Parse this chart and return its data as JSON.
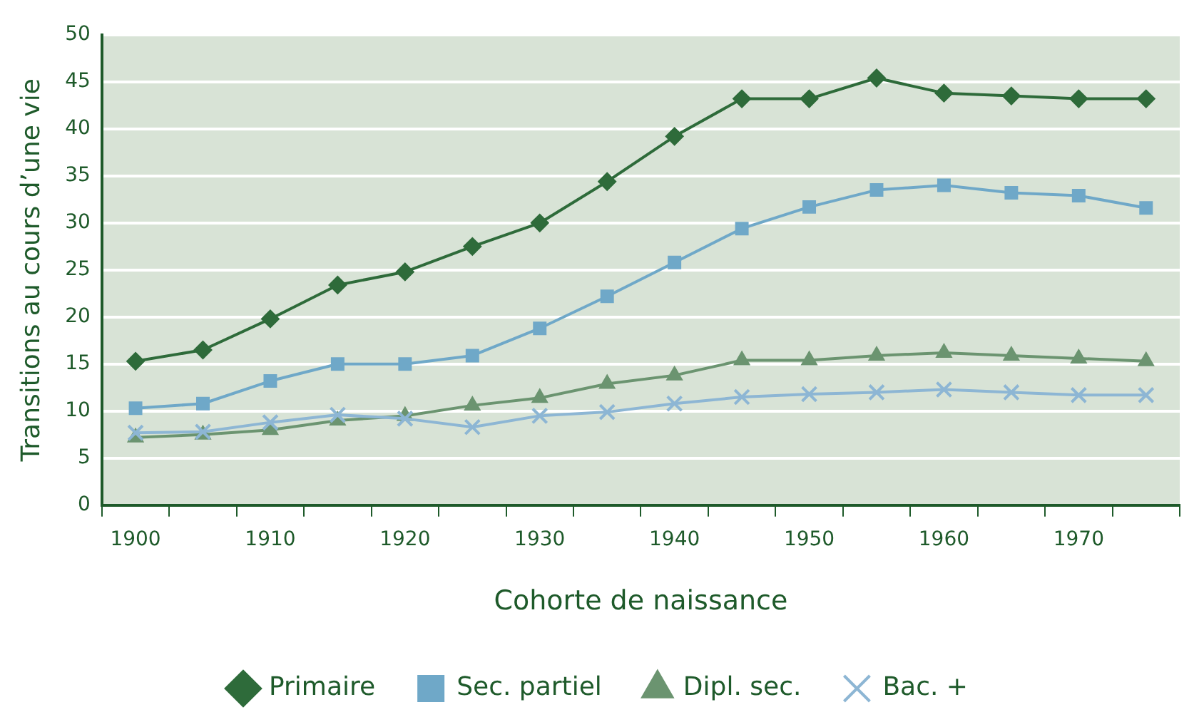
{
  "chart_data": {
    "type": "line",
    "xlabel": "Cohorte de naissance",
    "ylabel": "Transitions au cours d’une vie",
    "categories": [
      "1900",
      null,
      "1910",
      null,
      "1920",
      null,
      "1930",
      null,
      "1940",
      null,
      "1950",
      null,
      "1960",
      null,
      "1970",
      null
    ],
    "ylim": [
      0,
      50
    ],
    "yticks": [
      0,
      5,
      10,
      15,
      20,
      25,
      30,
      35,
      40,
      45,
      50
    ],
    "grid": "y",
    "legend": "bottom",
    "line_style": "solid",
    "series": [
      {
        "name": "Primaire",
        "color": "#2e6b3a",
        "marker": "diamond",
        "values": [
          15.3,
          16.5,
          19.8,
          23.4,
          24.8,
          27.5,
          30,
          34.4,
          39.2,
          43.2,
          43.2,
          45.4,
          43.8,
          43.5,
          43.2,
          43.2
        ]
      },
      {
        "name": "Sec. partiel",
        "color": "#6fa8c8",
        "marker": "square",
        "values": [
          10.3,
          10.8,
          13.2,
          15,
          15,
          15.9,
          18.8,
          22.2,
          25.8,
          29.4,
          31.7,
          33.5,
          34,
          33.2,
          32.9,
          31.6
        ]
      },
      {
        "name": "Dipl. sec.",
        "color": "#6b9470",
        "marker": "triangle",
        "values": [
          7.2,
          7.5,
          8,
          9,
          9.5,
          10.6,
          11.4,
          12.9,
          13.8,
          15.4,
          15.4,
          15.9,
          16.2,
          15.9,
          15.6,
          15.3
        ]
      },
      {
        "name": "Bac. +",
        "color": "#8db6d4",
        "marker": "cross",
        "values": [
          7.7,
          7.8,
          8.8,
          9.6,
          9.2,
          8.3,
          9.5,
          9.9,
          10.8,
          11.5,
          11.8,
          12,
          12.3,
          12,
          11.7,
          11.7
        ]
      }
    ]
  }
}
